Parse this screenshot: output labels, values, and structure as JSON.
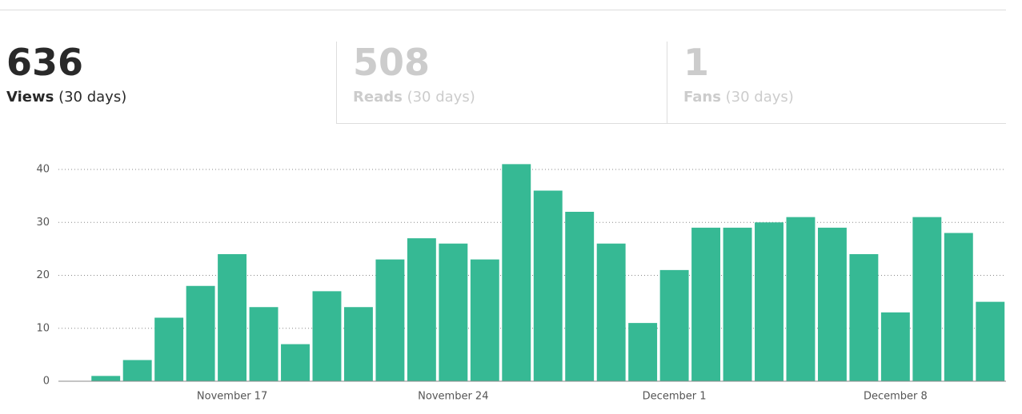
{
  "tabs": [
    {
      "value": "636",
      "label": "Views",
      "period": "(30 days)"
    },
    {
      "value": "508",
      "label": "Reads",
      "period": "(30 days)"
    },
    {
      "value": "1",
      "label": "Fans",
      "period": "(30 days)"
    }
  ],
  "chart_data": {
    "type": "bar",
    "categories": [
      null,
      null,
      null,
      null,
      null,
      "November 17",
      null,
      null,
      null,
      null,
      null,
      null,
      "November 24",
      null,
      null,
      null,
      null,
      null,
      null,
      "December 1",
      null,
      null,
      null,
      null,
      null,
      null,
      "December 8",
      null,
      null,
      null
    ],
    "values": [
      0,
      1,
      4,
      12,
      18,
      24,
      14,
      7,
      17,
      14,
      23,
      27,
      26,
      23,
      41,
      36,
      32,
      26,
      11,
      21,
      29,
      29,
      30,
      31,
      29,
      24,
      13,
      31,
      28,
      15
    ],
    "color": "#36b994",
    "ylim": [
      0,
      40
    ],
    "yticks": [
      0,
      10,
      20,
      30,
      40
    ],
    "grid": true
  }
}
